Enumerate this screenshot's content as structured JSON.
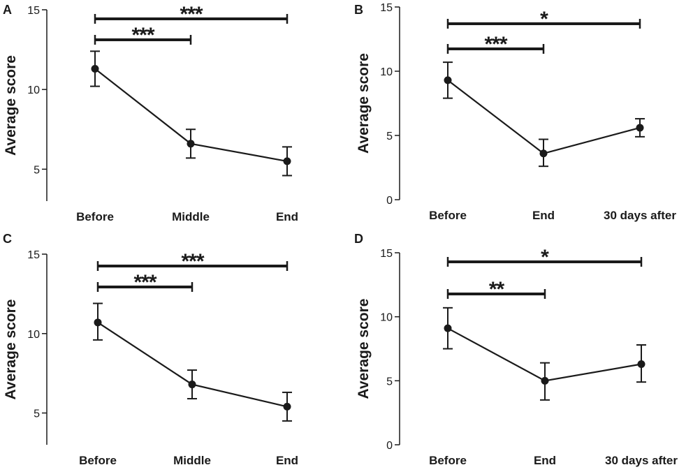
{
  "chart_data": [
    {
      "panel": "A",
      "type": "line",
      "title": "",
      "xlabel": "",
      "ylabel": "Average score",
      "categories": [
        "Before",
        "Middle",
        "End"
      ],
      "series": [
        {
          "name": "Average score",
          "values": [
            11.3,
            6.6,
            5.5
          ],
          "error_low": [
            10.2,
            5.7,
            4.6
          ],
          "error_high": [
            12.4,
            7.5,
            6.4
          ]
        }
      ],
      "ylim": [
        3,
        15
      ],
      "yticks": [
        5,
        10,
        15
      ],
      "significance": [
        {
          "from": 0,
          "to": 1,
          "label": "***"
        },
        {
          "from": 0,
          "to": 2,
          "label": "***"
        }
      ]
    },
    {
      "panel": "B",
      "type": "line",
      "title": "",
      "xlabel": "",
      "ylabel": "Average score",
      "categories": [
        "Before",
        "End",
        "30 days after"
      ],
      "series": [
        {
          "name": "Average score",
          "values": [
            9.3,
            3.6,
            5.6
          ],
          "error_low": [
            7.9,
            2.6,
            4.9
          ],
          "error_high": [
            10.7,
            4.7,
            6.3
          ]
        }
      ],
      "ylim": [
        0,
        15
      ],
      "yticks": [
        0,
        5,
        10,
        15
      ],
      "significance": [
        {
          "from": 0,
          "to": 1,
          "label": "***"
        },
        {
          "from": 0,
          "to": 2,
          "label": "*"
        }
      ]
    },
    {
      "panel": "C",
      "type": "line",
      "title": "",
      "xlabel": "",
      "ylabel": "Average score",
      "categories": [
        "Before",
        "Middle",
        "End"
      ],
      "series": [
        {
          "name": "Average score",
          "values": [
            10.7,
            6.8,
            5.4
          ],
          "error_low": [
            9.6,
            5.9,
            4.5
          ],
          "error_high": [
            11.9,
            7.7,
            6.3
          ]
        }
      ],
      "ylim": [
        3,
        15
      ],
      "yticks": [
        5,
        10,
        15
      ],
      "significance": [
        {
          "from": 0,
          "to": 1,
          "label": "***"
        },
        {
          "from": 0,
          "to": 2,
          "label": "***"
        }
      ]
    },
    {
      "panel": "D",
      "type": "line",
      "title": "",
      "xlabel": "",
      "ylabel": "Average score",
      "categories": [
        "Before",
        "End",
        "30 days after"
      ],
      "series": [
        {
          "name": "Average score",
          "values": [
            9.1,
            5.0,
            6.3
          ],
          "error_low": [
            7.5,
            3.5,
            4.9
          ],
          "error_high": [
            10.7,
            6.4,
            7.8
          ]
        }
      ],
      "ylim": [
        0,
        15
      ],
      "yticks": [
        0,
        5,
        10,
        15
      ],
      "significance": [
        {
          "from": 0,
          "to": 1,
          "label": "**"
        },
        {
          "from": 0,
          "to": 2,
          "label": "*"
        }
      ]
    }
  ]
}
